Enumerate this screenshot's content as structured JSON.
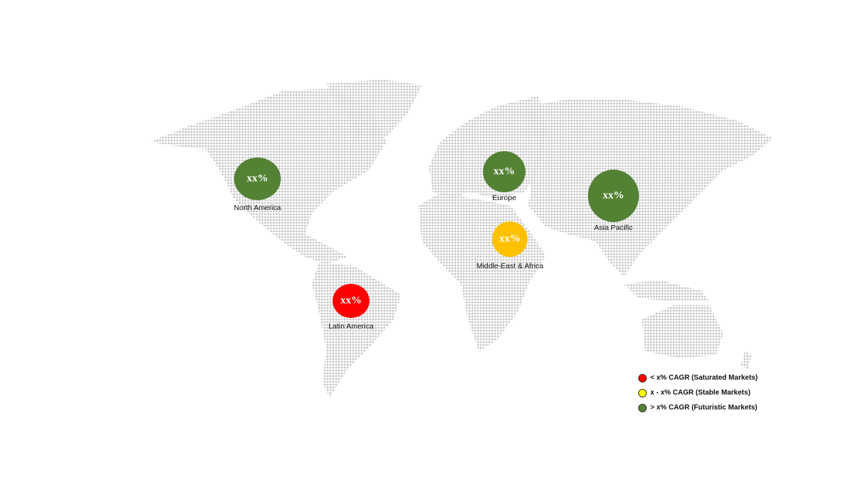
{
  "regions": [
    {
      "name": "North America",
      "value": "xx%",
      "color": "#548235"
    },
    {
      "name": "Europe",
      "value": "xx%",
      "color": "#548235"
    },
    {
      "name": "Asia Pacific",
      "value": "xx%",
      "color": "#548235"
    },
    {
      "name": "Middle-East & Africa",
      "value": "xx%",
      "color": "#FFC000"
    },
    {
      "name": "Latin America",
      "value": "xx%",
      "color": "#FF0000"
    }
  ],
  "legend": [
    {
      "label": "< x% CAGR (Saturated Markets)",
      "color": "#FF0000"
    },
    {
      "label": "x - x% CAGR (Stable Markets)",
      "color": "#FFFF00"
    },
    {
      "label": "> x% CAGR (Futuristic Markets)",
      "color": "#548235"
    }
  ],
  "map_dot_color": "#c4c4c4"
}
